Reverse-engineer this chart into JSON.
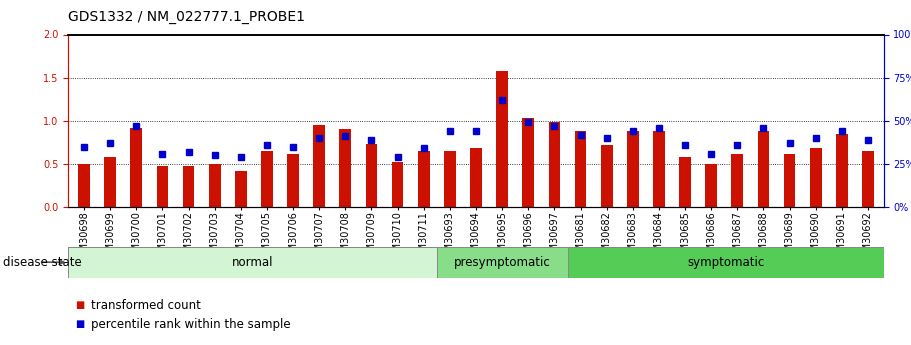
{
  "title": "GDS1332 / NM_022777.1_PROBE1",
  "samples": [
    "GSM30698",
    "GSM30699",
    "GSM30700",
    "GSM30701",
    "GSM30702",
    "GSM30703",
    "GSM30704",
    "GSM30705",
    "GSM30706",
    "GSM30707",
    "GSM30708",
    "GSM30709",
    "GSM30710",
    "GSM30711",
    "GSM30693",
    "GSM30694",
    "GSM30695",
    "GSM30696",
    "GSM30697",
    "GSM30681",
    "GSM30682",
    "GSM30683",
    "GSM30684",
    "GSM30685",
    "GSM30686",
    "GSM30687",
    "GSM30688",
    "GSM30689",
    "GSM30690",
    "GSM30691",
    "GSM30692"
  ],
  "bar_values": [
    0.5,
    0.58,
    0.92,
    0.47,
    0.47,
    0.5,
    0.42,
    0.65,
    0.62,
    0.95,
    0.9,
    0.73,
    0.52,
    0.65,
    0.65,
    0.68,
    1.58,
    1.03,
    0.98,
    0.88,
    0.72,
    0.88,
    0.88,
    0.58,
    0.5,
    0.62,
    0.88,
    0.62,
    0.68,
    0.85,
    0.65
  ],
  "dot_values_pct": [
    35,
    37,
    47,
    31,
    32,
    30,
    29,
    36,
    35,
    40,
    41,
    39,
    29,
    34,
    44,
    44,
    62,
    49,
    47,
    42,
    40,
    44,
    46,
    36,
    31,
    36,
    46,
    37,
    40,
    44,
    39
  ],
  "groups": [
    {
      "label": "normal",
      "start": 0,
      "end": 14,
      "color": "#d4f5d4"
    },
    {
      "label": "presymptomatic",
      "start": 14,
      "end": 19,
      "color": "#88dd88"
    },
    {
      "label": "symptomatic",
      "start": 19,
      "end": 31,
      "color": "#55cc55"
    }
  ],
  "bar_color": "#cc1100",
  "dot_color": "#0000cc",
  "ylim_left": [
    0,
    2
  ],
  "ylim_right": [
    0,
    100
  ],
  "yticks_left": [
    0,
    0.5,
    1.0,
    1.5,
    2.0
  ],
  "yticks_right": [
    0,
    25,
    50,
    75,
    100
  ],
  "legend_bar": "transformed count",
  "legend_dot": "percentile rank within the sample",
  "disease_state_label": "disease state",
  "title_fontsize": 10,
  "tick_fontsize": 7,
  "label_fontsize": 8.5,
  "group_label_fontsize": 8.5,
  "right_pct_suffix": "%"
}
